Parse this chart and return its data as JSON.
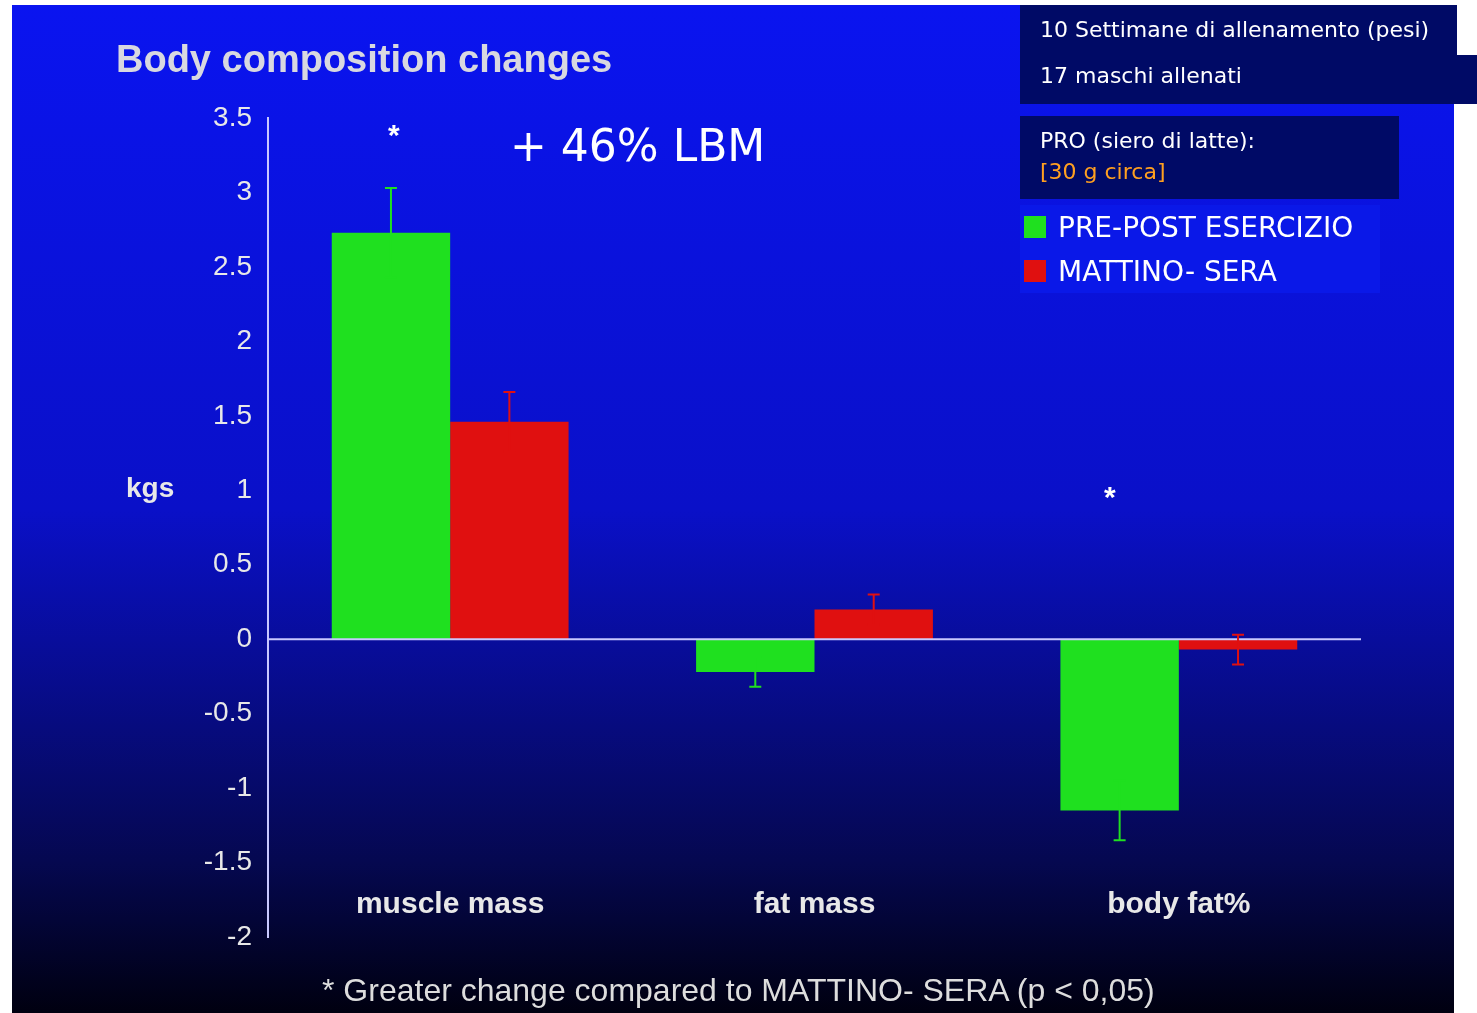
{
  "chart_data": {
    "type": "bar",
    "title": "Body composition changes",
    "ylabel": "kgs",
    "categories": [
      "muscle mass",
      "fat mass",
      "body fat%"
    ],
    "series": [
      {
        "name": "PRE-POST ESERCIZIO",
        "color": "#1fe01f",
        "values": [
          2.73,
          -0.22,
          -1.15
        ],
        "errors": [
          0.3,
          0.1,
          0.2
        ]
      },
      {
        "name": "MATTINO- SERA",
        "color": "#e01010",
        "values": [
          1.46,
          0.2,
          -0.07
        ],
        "errors": [
          0.2,
          0.1,
          0.1
        ]
      }
    ],
    "ylim": [
      -2,
      3.5
    ],
    "yticks": [
      -2,
      -1.5,
      -1,
      -0.5,
      0,
      0.5,
      1,
      1.5,
      2,
      2.5,
      3,
      3.5
    ],
    "grid": false,
    "legend": "top right",
    "ref_lines": [
      {
        "axis": "y",
        "value": 0,
        "color": "#c8c8ff"
      }
    ],
    "annotations": [
      "*",
      "*",
      "+ 46% LBM",
      "10 Settimane di allenamento (pesi)",
      "17 maschi allenati",
      "PRO (siero di latte):",
      "[30 g circa]",
      "* Greater change compared to MATTINO- SERA (p < 0,05)"
    ]
  }
}
